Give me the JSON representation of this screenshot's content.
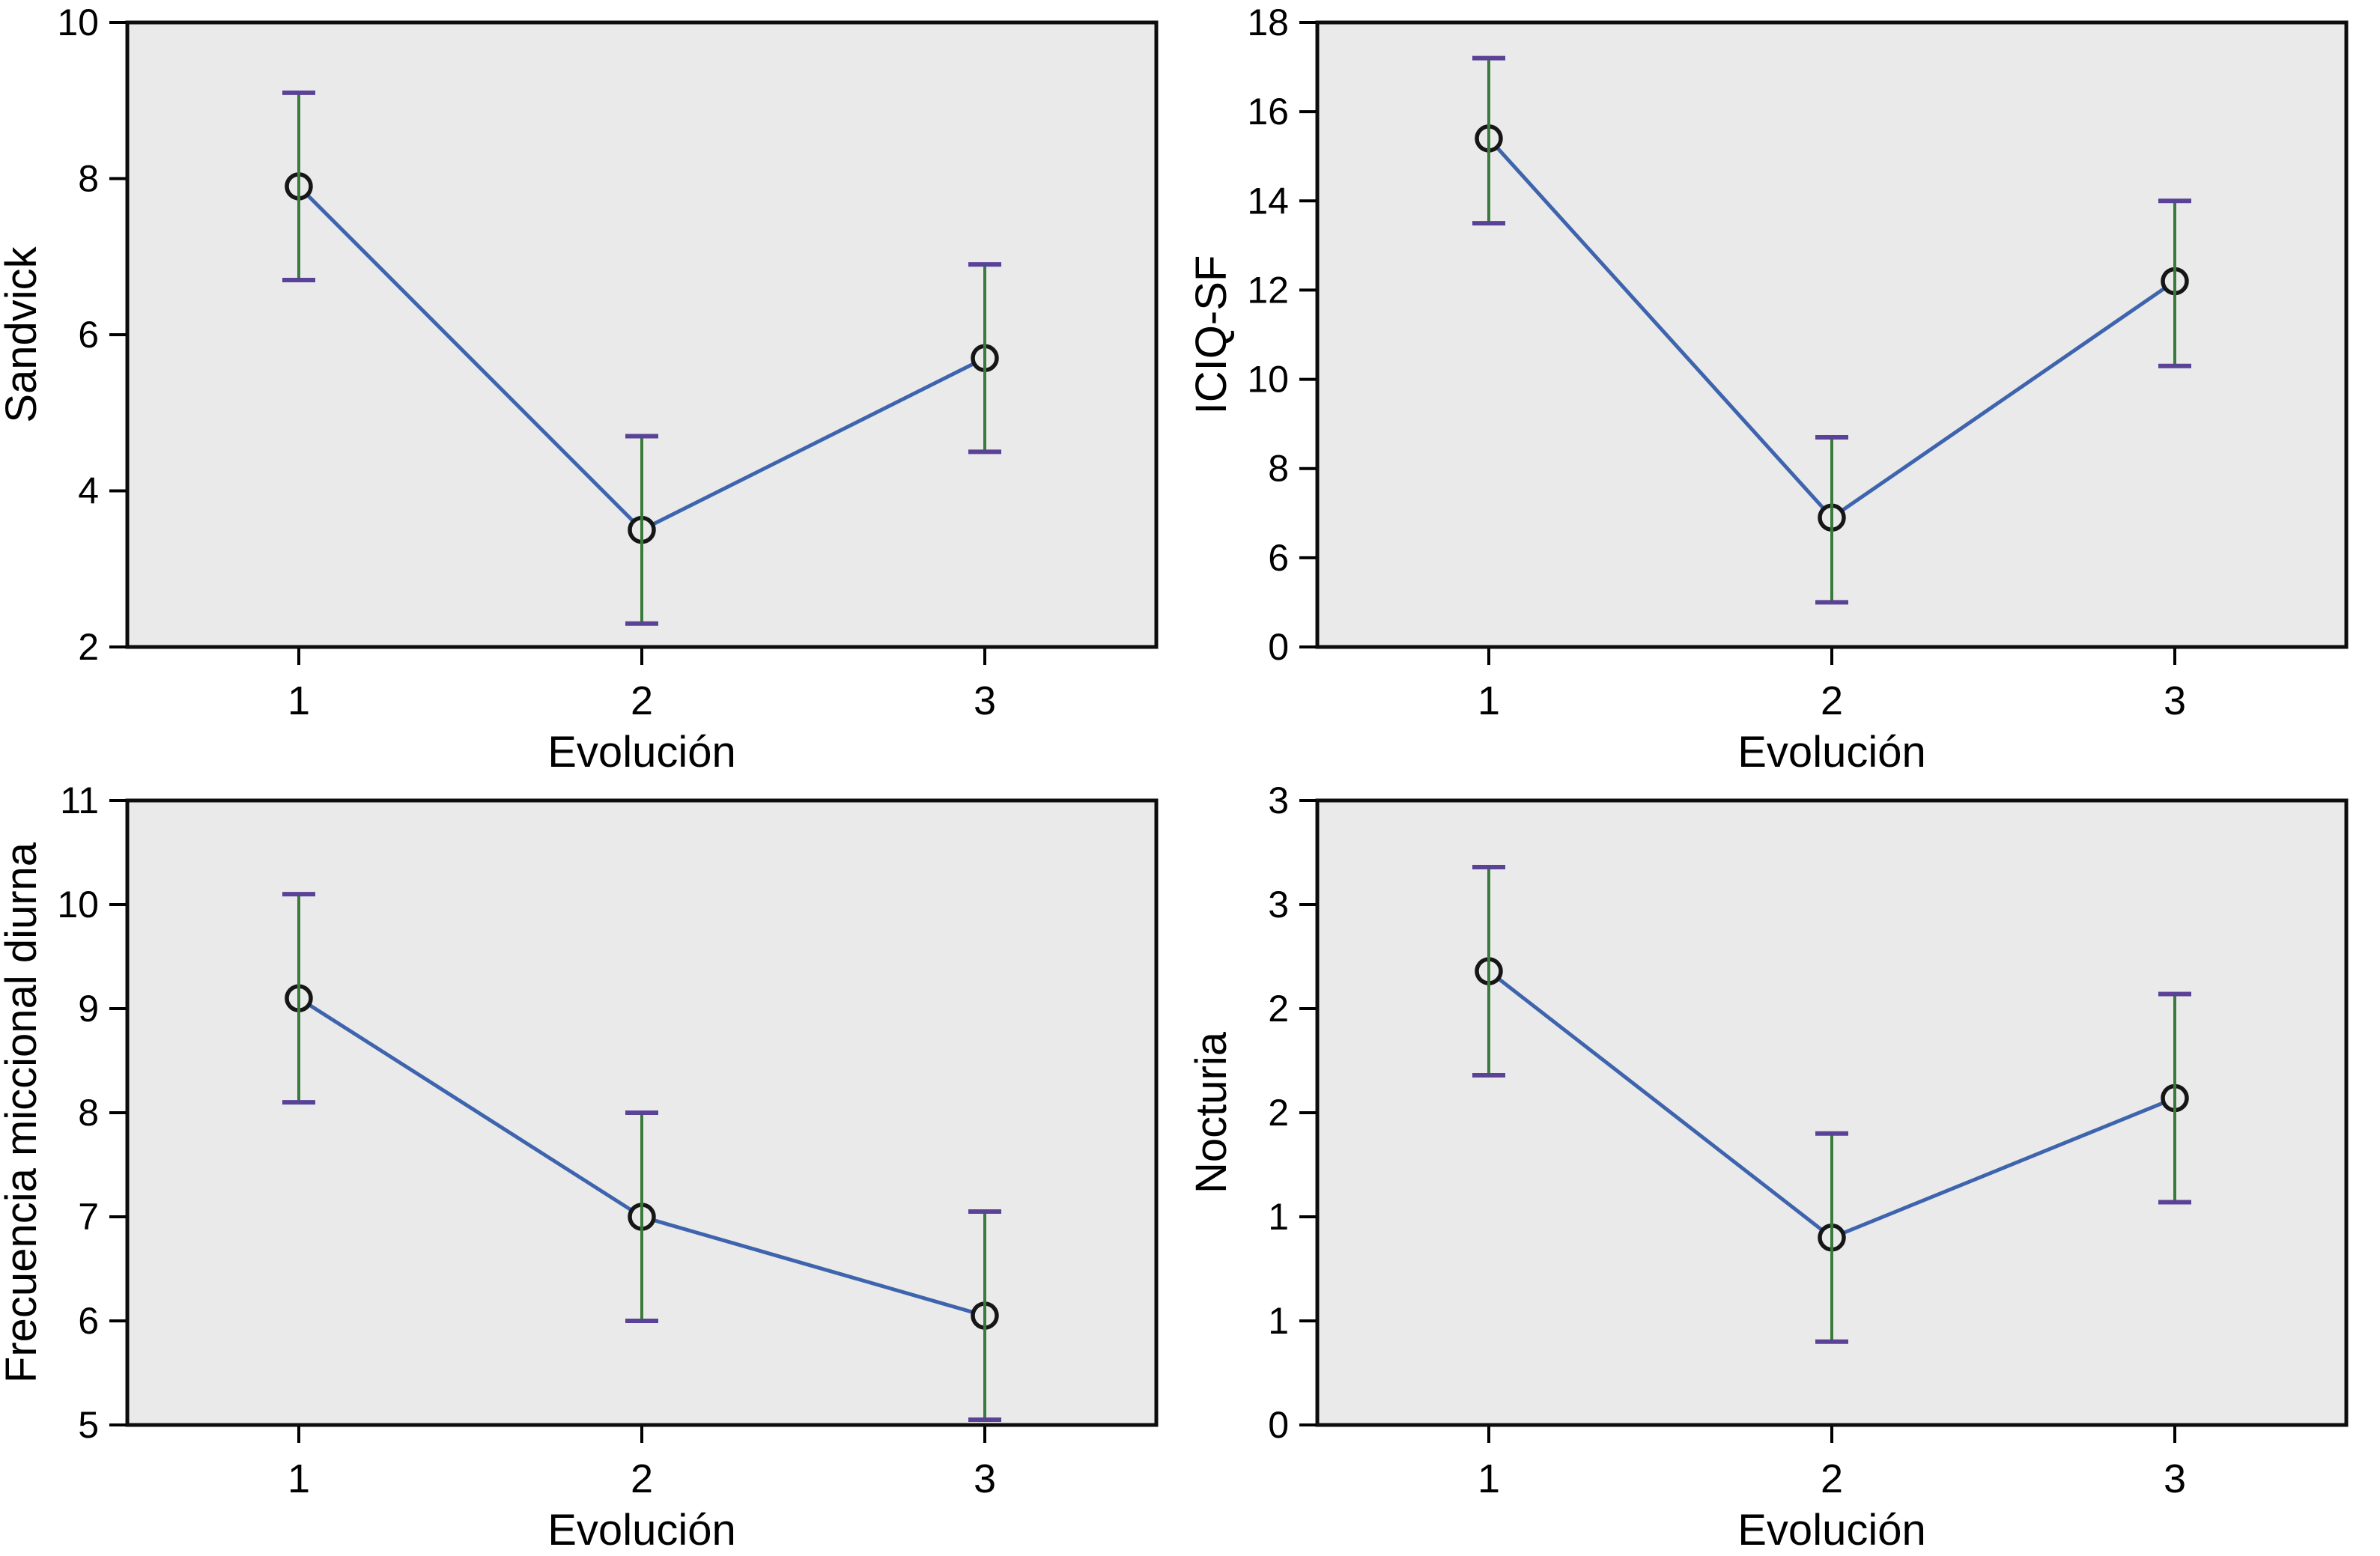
{
  "figure": {
    "title": "",
    "xlabel": "Evolución",
    "x_categories": [
      "1",
      "2",
      "3"
    ],
    "colors": {
      "page_bg": "#ffffff",
      "plot_bg": "#eaeaea",
      "frame": "#0d0d0d",
      "tick": "#000000",
      "line": "#3e64ae",
      "error_bar": "#3a7b3c",
      "error_cap": "#5a4397",
      "marker_ring": "#161616",
      "text": "#000000"
    },
    "layout": {
      "grid": "2x2",
      "legend": "none",
      "gridlines": false,
      "marker_style": "open-circle",
      "error_bars": "95% CI vertical with caps"
    }
  },
  "chart_data": [
    {
      "type": "line",
      "position": "top-left",
      "ylabel": "Sandvick",
      "xlabel": "Evolución",
      "x": [
        1,
        2,
        3
      ],
      "x_tick_labels": [
        "1",
        "2",
        "3"
      ],
      "series": [
        {
          "name": "media",
          "values": [
            7.9,
            3.5,
            5.7
          ]
        }
      ],
      "means": [
        7.9,
        3.5,
        5.7
      ],
      "ci_low": [
        6.7,
        2.3,
        4.5
      ],
      "ci_high": [
        9.1,
        4.7,
        6.9
      ],
      "ylim": [
        2,
        10
      ],
      "yticks": [
        {
          "value": 10,
          "label": "10"
        },
        {
          "value": 8,
          "label": "8"
        },
        {
          "value": 6,
          "label": "6"
        },
        {
          "value": 4,
          "label": "4"
        },
        {
          "value": 2,
          "label": "2"
        }
      ]
    },
    {
      "type": "line",
      "position": "top-right",
      "ylabel": "ICIQ-SF",
      "xlabel": "Evolución",
      "x": [
        1,
        2,
        3
      ],
      "x_tick_labels": [
        "1",
        "2",
        "3"
      ],
      "series": [
        {
          "name": "media",
          "values": [
            15.4,
            6.9,
            12.2
          ]
        }
      ],
      "means": [
        15.4,
        6.9,
        12.2
      ],
      "ci_low": [
        13.5,
        5.0,
        10.3
      ],
      "ci_high": [
        17.2,
        8.7,
        14.0
      ],
      "ylim": [
        4,
        18
      ],
      "axis_note": "bottom axis tick labeled 0 at plot floor",
      "yticks": [
        {
          "value": 18,
          "label": "18"
        },
        {
          "value": 16,
          "label": "16"
        },
        {
          "value": 14,
          "label": "14"
        },
        {
          "value": 12,
          "label": "12"
        },
        {
          "value": 10,
          "label": "10"
        },
        {
          "value": 8,
          "label": "8"
        },
        {
          "value": 6,
          "label": "6"
        },
        {
          "value": 4,
          "label": "0"
        }
      ]
    },
    {
      "type": "line",
      "position": "bottom-left",
      "ylabel": "Frecuencia miccional diurna",
      "xlabel": "Evolución",
      "x": [
        1,
        2,
        3
      ],
      "x_tick_labels": [
        "1",
        "2",
        "3"
      ],
      "series": [
        {
          "name": "media",
          "values": [
            9.1,
            7.0,
            6.05
          ]
        }
      ],
      "means": [
        9.1,
        7.0,
        6.05
      ],
      "ci_low": [
        8.1,
        6.0,
        5.05
      ],
      "ci_high": [
        10.1,
        8.0,
        7.05
      ],
      "ylim": [
        5,
        11
      ],
      "yticks": [
        {
          "value": 11,
          "label": "11"
        },
        {
          "value": 10,
          "label": "10"
        },
        {
          "value": 9,
          "label": "9"
        },
        {
          "value": 8,
          "label": "8"
        },
        {
          "value": 7,
          "label": "7"
        },
        {
          "value": 6,
          "label": "6"
        },
        {
          "value": 5,
          "label": "5"
        }
      ]
    },
    {
      "type": "line",
      "position": "bottom-right",
      "ylabel": "Nocturia",
      "xlabel": "Evolución",
      "x": [
        1,
        2,
        3
      ],
      "x_tick_labels": [
        "1",
        "2",
        "3"
      ],
      "series": [
        {
          "name": "media",
          "values": [
            2.18,
            0.9,
            1.57
          ]
        }
      ],
      "means": [
        2.18,
        0.9,
        1.57
      ],
      "ci_low": [
        1.68,
        0.4,
        1.07
      ],
      "ci_high": [
        2.68,
        1.4,
        2.07
      ],
      "ylim": [
        0,
        3
      ],
      "axis_note": "half-unit ticks labeled with rounded integers",
      "yticks": [
        {
          "value": 3.0,
          "label": "3"
        },
        {
          "value": 2.5,
          "label": "3"
        },
        {
          "value": 2.0,
          "label": "2"
        },
        {
          "value": 1.5,
          "label": "2"
        },
        {
          "value": 1.0,
          "label": "1"
        },
        {
          "value": 0.5,
          "label": "1"
        },
        {
          "value": 0.0,
          "label": "0"
        }
      ]
    }
  ]
}
